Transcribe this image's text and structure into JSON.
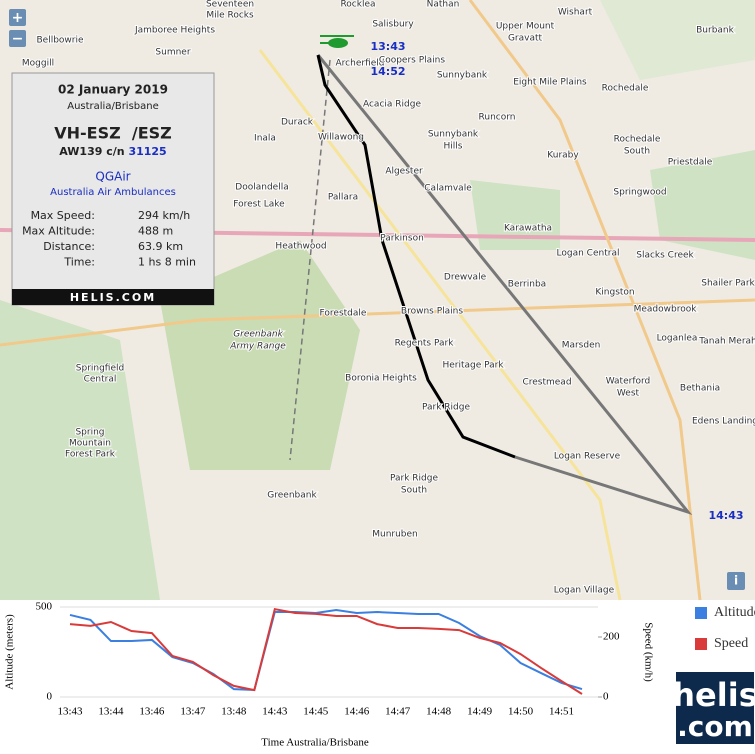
{
  "map": {
    "zoom_in": "+",
    "zoom_out": "−",
    "info": "i",
    "labels": [
      "Seventeen",
      "Mile Rocks",
      "Rocklea",
      "Nathan",
      "Wishart",
      "Salisbury",
      "Upper Mount",
      "Gravatt",
      "Bellbowrie",
      "Jamboree Heights",
      "Sumner",
      "Moggill",
      "Archerfield",
      "Coopers Plains",
      "Sunnybank",
      "Eight Mile Plains",
      "Burbank",
      "Rochedale",
      "Acacia Ridge",
      "Durack",
      "Runcorn",
      "Inala",
      "Willawong",
      "Sunnybank",
      "Hills",
      "Kuraby",
      "Rochedale",
      "South",
      "Priestdale",
      "Algester",
      "Calamvale",
      "Doolandella",
      "Forest Lake",
      "Pallara",
      "Springwood",
      "Karawatha",
      "Parkinson",
      "Heathwood",
      "Logan Central",
      "Slacks Creek",
      "Drewvale",
      "Berrinba",
      "Kingston",
      "Shailer Park",
      "Meadowbrook",
      "Forestdale",
      "Browns Plains",
      "Greenbank",
      "Army Range",
      "Loganlea",
      "Tanah Merah",
      "Springfield",
      "Central",
      "Regents Park",
      "Marsden",
      "Heritage Park",
      "Boronia Heights",
      "Crestmead",
      "Waterford",
      "West",
      "Bethania",
      "Park Ridge",
      "Edens Landing",
      "Spring",
      "Mountain",
      "Forest Park",
      "Logan Reserve",
      "Park Ridge",
      "South",
      "Greenbank",
      "Munruben",
      "Logan Village"
    ],
    "times": [
      "13:43",
      "14:52",
      "14:43"
    ]
  },
  "info_panel": {
    "date": "02 January 2019",
    "timezone": "Australia/Brisbane",
    "registration": "VH-ESZ  /ESZ",
    "model": "AW139 c/n",
    "serial": "31125",
    "operator": "QGAir",
    "operator_full": "Australia Air Ambulances",
    "stats": [
      [
        "Max Speed:",
        "294 km/h"
      ],
      [
        "Max Altitude:",
        "488 m"
      ],
      [
        "Distance:",
        "63.9 km"
      ],
      [
        "Time:",
        "1 hs 8 min"
      ]
    ],
    "footer": "HELIS.COM"
  },
  "chart_data": {
    "type": "line",
    "x_label": "Time Australia/Brisbane",
    "y_label": "Altitude (meters)",
    "y2_label": "Speed (km/h)",
    "categories": [
      "13:43",
      null,
      "13:44",
      null,
      "13:46",
      null,
      "13:47",
      null,
      "13:48",
      null,
      "14:43",
      null,
      "14:45",
      null,
      "14:46",
      null,
      "14:47",
      null,
      "14:48",
      null,
      "14:49",
      null,
      "14:50",
      null,
      "14:51",
      null
    ],
    "series": [
      {
        "name": "Altitude",
        "color": "#3b7fe0",
        "values": [
          456,
          428,
          311,
          311,
          317,
          222,
          189,
          128,
          44,
          39,
          472,
          472,
          467,
          483,
          467,
          472,
          467,
          461,
          461,
          411,
          339,
          289,
          189,
          133,
          78,
          44
        ]
      },
      {
        "name": "Speed",
        "color": "#d93a3a",
        "axis": "y2",
        "values": [
          243,
          237,
          250,
          220,
          213,
          137,
          117,
          73,
          37,
          23,
          293,
          280,
          277,
          270,
          270,
          243,
          230,
          230,
          227,
          223,
          197,
          180,
          143,
          97,
          53,
          10
        ]
      }
    ],
    "ylim": [
      0,
      500
    ],
    "yticks": [
      0,
      500
    ],
    "y2lim": [
      0,
      300
    ],
    "y2ticks": [
      0,
      200
    ],
    "grid": true
  },
  "logo": {
    "name": "helis",
    "suffix": ".com"
  }
}
